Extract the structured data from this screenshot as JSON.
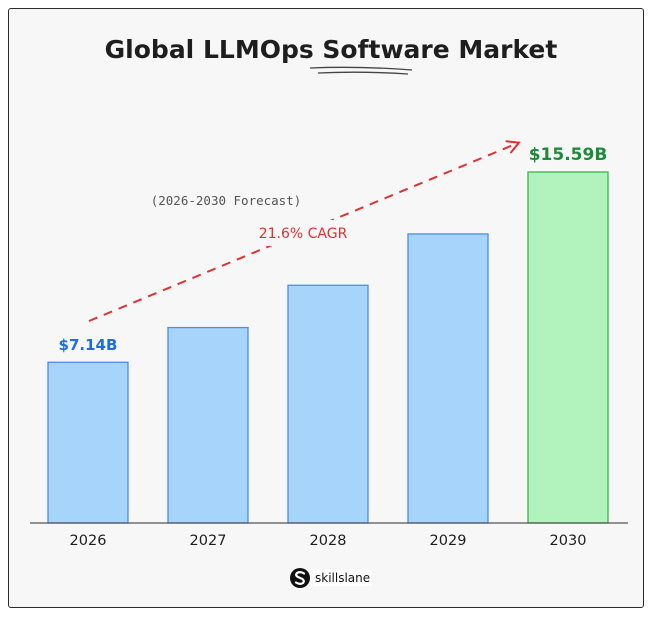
{
  "chart_data": {
    "type": "bar",
    "title": "Global LLMOps Software Market",
    "subtitle": "(2026-2030 Forecast)",
    "annotation": "21.6% CAGR",
    "categories": [
      "2026",
      "2027",
      "2028",
      "2029",
      "2030"
    ],
    "values": [
      7.14,
      8.68,
      10.56,
      12.84,
      15.59
    ],
    "data_labels": [
      "$7.14B",
      "",
      "",
      "",
      "$15.59B"
    ],
    "bar_colors": [
      "#a6d4fa",
      "#a6d4fa",
      "#a6d4fa",
      "#a6d4fa",
      "#b1f2bd"
    ],
    "bar_stroke_colors": [
      "#4a8df0",
      "#4a8df0",
      "#4a8df0",
      "#4a8df0",
      "#38b34e"
    ],
    "label_colors": [
      "#1f6ee0",
      "",
      "",
      "",
      "#1e8a3a"
    ],
    "arrow_color": "#e03131",
    "ylim": [
      0,
      15.59
    ],
    "grid": false,
    "legend": "none"
  },
  "brand": {
    "name": "skillslane"
  }
}
